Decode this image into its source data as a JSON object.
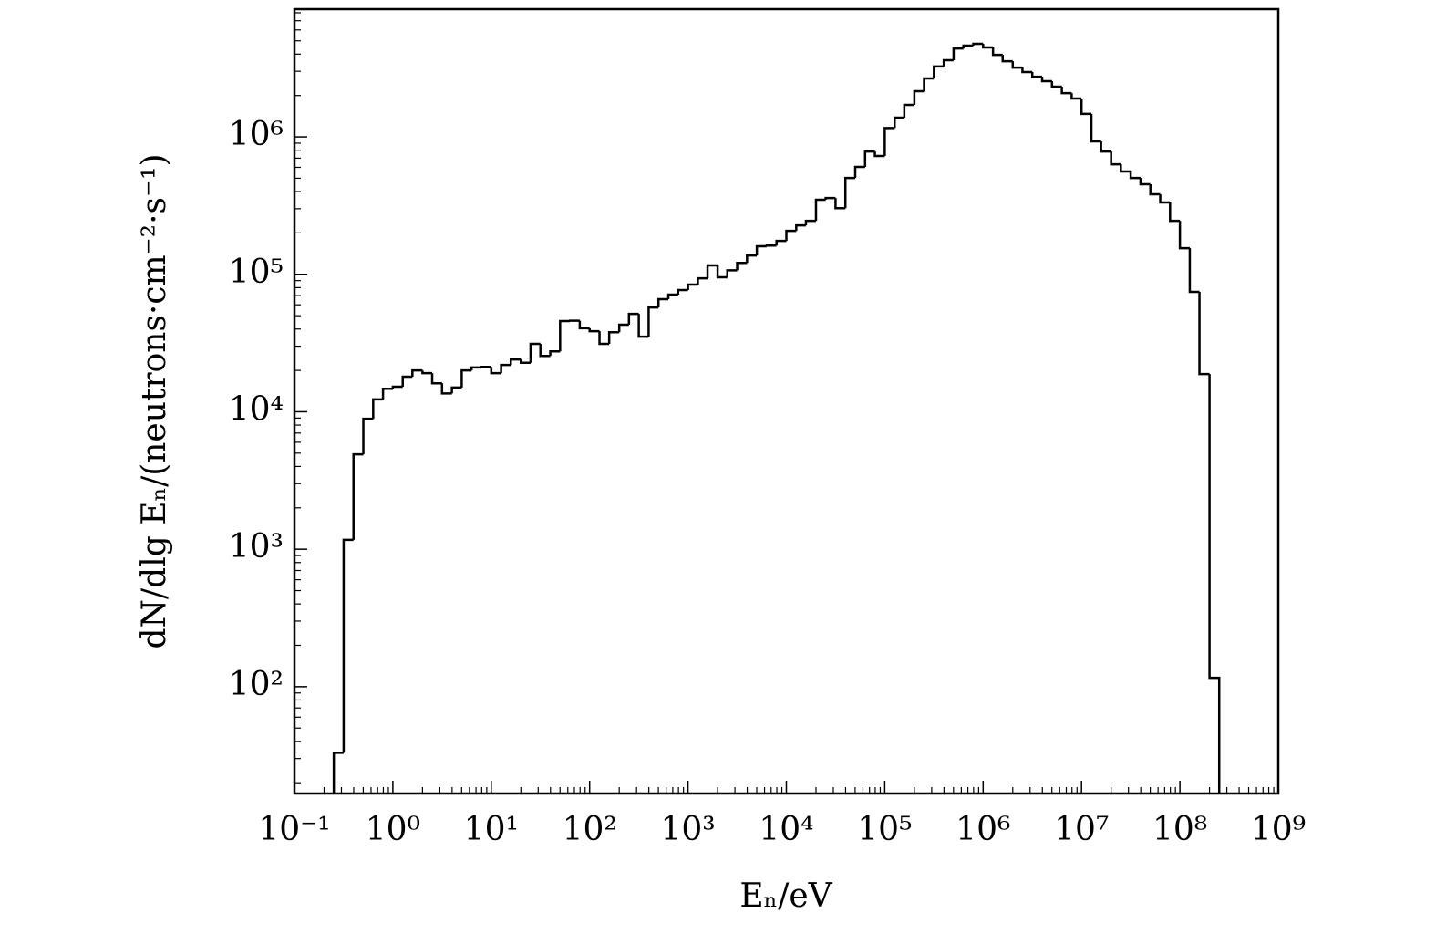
{
  "chart_data": {
    "type": "histogram",
    "xlabel": "Eₙ/eV",
    "ylabel": "dN/dlg Eₙ/(neutrons·cm⁻²·s⁻¹)",
    "xscale": "log",
    "yscale": "log",
    "minor_ticks": true,
    "color": "#000000",
    "bins": [
      0.251,
      0.316,
      0.398,
      0.501,
      0.631,
      0.794,
      1,
      1.26,
      1.58,
      2,
      2.51,
      3.16,
      3.98,
      5.01,
      6.31,
      7.94,
      10,
      12.6,
      15.8,
      20,
      25.1,
      31.6,
      39.8,
      50.1,
      63.1,
      79.4,
      100,
      126,
      158,
      200,
      251,
      316,
      398,
      501,
      631,
      794,
      1000,
      1260,
      1580,
      2000,
      2510,
      3160,
      3980,
      5010,
      6310,
      7940,
      10000,
      12600,
      15800,
      20000,
      25100,
      31600,
      39800,
      50100,
      63100,
      79400,
      100000,
      126000,
      158000,
      200000,
      251000,
      316000,
      398000,
      501000,
      631000,
      794000,
      1000000,
      1260000,
      1580000,
      2000000,
      2510000,
      3160000,
      3980000,
      5010000,
      6310000,
      7940000,
      10000000,
      12600000,
      15800000,
      20000000,
      25100000,
      31600000,
      39800000,
      50100000,
      63100000,
      79400000,
      100000000,
      126000000,
      158000000,
      200000000,
      251000000
    ],
    "counts": [
      33,
      1170,
      4900,
      8900,
      12300,
      14700,
      15200,
      18000,
      20000,
      19100,
      16100,
      13600,
      15000,
      20000,
      21000,
      21200,
      19100,
      21900,
      24000,
      22700,
      31200,
      25500,
      27500,
      45700,
      46000,
      40500,
      38600,
      31200,
      37900,
      43000,
      51600,
      35200,
      57400,
      65900,
      71200,
      76800,
      84200,
      93600,
      116000,
      95100,
      107000,
      121000,
      137000,
      160000,
      162000,
      175000,
      207000,
      227000,
      245000,
      349000,
      359000,
      303000,
      502000,
      604000,
      783000,
      726000,
      1160000,
      1380000,
      1710000,
      2150000,
      2660000,
      3250000,
      3610000,
      4400000,
      4610000,
      4760000,
      4470000,
      3950000,
      3550000,
      3190000,
      2960000,
      2740000,
      2540000,
      2320000,
      2080000,
      1900000,
      1470000,
      927000,
      783000,
      632000,
      560000,
      502000,
      452000,
      382000,
      333000,
      245000,
      155000,
      74500,
      18800,
      116
    ],
    "xlim": [
      0.1,
      1000000000
    ],
    "xticks": [
      {
        "value": 0.1,
        "label": "10⁻¹"
      },
      {
        "value": 1,
        "label": "10⁰"
      },
      {
        "value": 10,
        "label": "10¹"
      },
      {
        "value": 100,
        "label": "10²"
      },
      {
        "value": 1000,
        "label": "10³"
      },
      {
        "value": 10000,
        "label": "10⁴"
      },
      {
        "value": 100000,
        "label": "10⁵"
      },
      {
        "value": 1000000,
        "label": "10⁶"
      },
      {
        "value": 10000000,
        "label": "10⁷"
      },
      {
        "value": 100000000,
        "label": "10⁸"
      },
      {
        "value": 1000000000,
        "label": "10⁹"
      }
    ],
    "ylim": [
      16.7,
      8500000
    ],
    "yticks": [
      {
        "value": 100,
        "label": "10²"
      },
      {
        "value": 1000,
        "label": "10³"
      },
      {
        "value": 10000,
        "label": "10⁴"
      },
      {
        "value": 100000,
        "label": "10⁵"
      },
      {
        "value": 1000000,
        "label": "10⁶"
      }
    ]
  }
}
